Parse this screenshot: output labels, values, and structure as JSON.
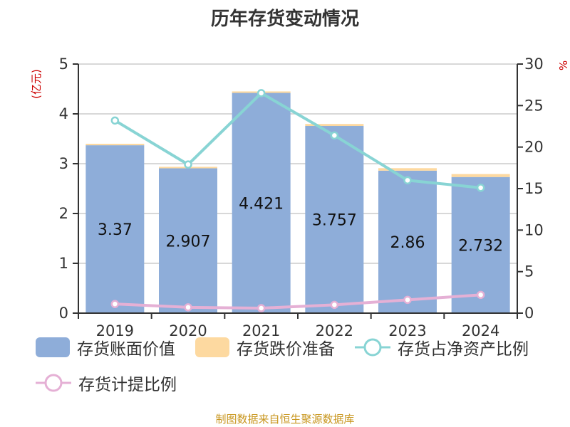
{
  "chart_data": {
    "type": "bar",
    "title": "历年存货变动情况",
    "categories": [
      "2019",
      "2020",
      "2021",
      "2022",
      "2023",
      "2024"
    ],
    "left_axis": {
      "unit": "(亿元)",
      "ylim": [
        0,
        5
      ],
      "ticks": [
        "0",
        "1",
        "2",
        "3",
        "4",
        "5"
      ]
    },
    "right_axis": {
      "unit": "%",
      "ylim": [
        0,
        30
      ],
      "ticks": [
        "0",
        "5",
        "10",
        "15",
        "20",
        "25",
        "30"
      ]
    },
    "grid": true,
    "legend_position": "bottom",
    "series": [
      {
        "name": "存货账面价值",
        "type": "bar",
        "stack": "inventory",
        "axis": "left",
        "color": "#8eadd9",
        "values": [
          3.37,
          2.907,
          4.421,
          3.757,
          2.86,
          2.732
        ],
        "labels": [
          "3.37",
          "2.907",
          "4.421",
          "3.757",
          "2.86",
          "2.732"
        ]
      },
      {
        "name": "存货跌价准备",
        "type": "bar",
        "stack": "inventory",
        "axis": "left",
        "color": "#fdd9a0",
        "values": [
          0.03,
          0.03,
          0.03,
          0.04,
          0.05,
          0.06
        ]
      },
      {
        "name": "存货占净资产比例",
        "type": "line",
        "axis": "right",
        "color": "#88d4d4",
        "values": [
          23.2,
          17.9,
          26.5,
          21.4,
          16.0,
          15.1
        ]
      },
      {
        "name": "存货计提比例",
        "type": "line",
        "axis": "right",
        "color": "#e5b0d5",
        "values": [
          1.1,
          0.7,
          0.6,
          1.0,
          1.6,
          2.2
        ]
      }
    ]
  },
  "source": "制图数据来自恒生聚源数据库"
}
